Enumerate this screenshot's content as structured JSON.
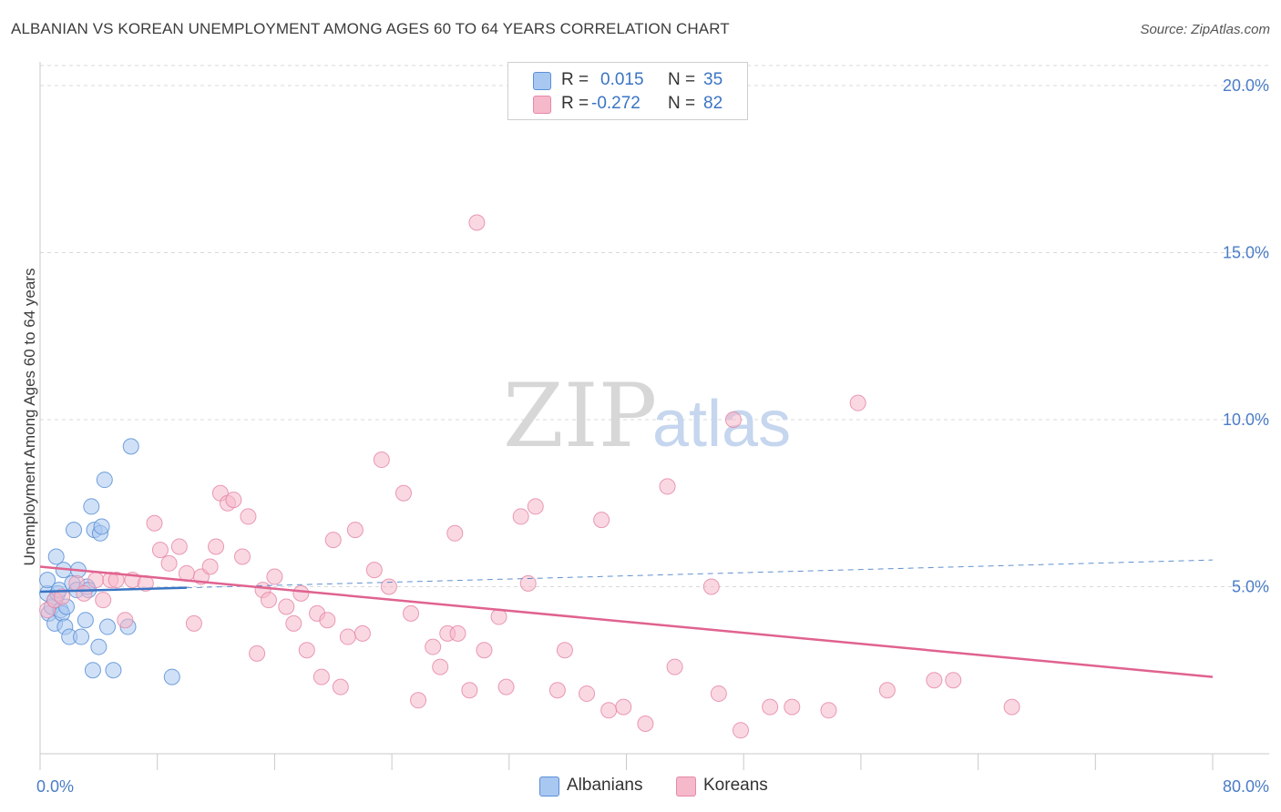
{
  "title": "ALBANIAN VS KOREAN UNEMPLOYMENT AMONG AGES 60 TO 64 YEARS CORRELATION CHART",
  "source": "Source: ZipAtlas.com",
  "watermark": {
    "zip": "ZIP",
    "atlas": "atlas"
  },
  "legend": {
    "rows": [
      {
        "r_label": "R =",
        "r_value": "0.015",
        "n_label": "N =",
        "n_value": "35"
      },
      {
        "r_label": "R =",
        "r_value": "-0.272",
        "n_label": "N =",
        "n_value": "82"
      }
    ]
  },
  "bottom_legend": [
    "Albanians",
    "Koreans"
  ],
  "colors": {
    "albanian_fill": "#a9c8f1",
    "albanian_stroke": "#5b8fd6",
    "albanian_line": "#3a74c4",
    "korean_fill": "#f6b8cb",
    "korean_stroke": "#e58aa7",
    "korean_line": "#e0628f",
    "tick_text": "#4a7cc7",
    "grid": "#d9d9d9"
  },
  "chart_data": {
    "type": "scatter",
    "title": "ALBANIAN VS KOREAN UNEMPLOYMENT AMONG AGES 60 TO 64 YEARS CORRELATION CHART",
    "xlabel": "",
    "ylabel": "Unemployment Among Ages 60 to 64 years",
    "xlim": [
      0,
      80
    ],
    "ylim": [
      0,
      20.6
    ],
    "x_tick_labels": [
      "0.0%",
      "80.0%"
    ],
    "y_ticks": [
      5,
      10,
      15,
      20
    ],
    "y_tick_labels": [
      "5.0%",
      "10.0%",
      "15.0%",
      "20.0%"
    ],
    "series": [
      {
        "name": "Albanians",
        "r": 0.015,
        "n": 35,
        "points": [
          [
            0.5,
            4.8
          ],
          [
            0.5,
            5.2
          ],
          [
            0.6,
            4.2
          ],
          [
            0.8,
            4.4
          ],
          [
            1.0,
            4.6
          ],
          [
            1.0,
            3.9
          ],
          [
            1.1,
            5.9
          ],
          [
            1.2,
            4.8
          ],
          [
            1.3,
            4.9
          ],
          [
            1.4,
            4.3
          ],
          [
            1.5,
            4.2
          ],
          [
            1.6,
            5.5
          ],
          [
            1.7,
            3.8
          ],
          [
            1.8,
            4.4
          ],
          [
            2.0,
            3.5
          ],
          [
            2.2,
            5.1
          ],
          [
            2.3,
            6.7
          ],
          [
            2.5,
            4.9
          ],
          [
            2.6,
            5.5
          ],
          [
            2.8,
            3.5
          ],
          [
            3.1,
            4.0
          ],
          [
            3.2,
            5.0
          ],
          [
            3.3,
            4.9
          ],
          [
            3.5,
            7.4
          ],
          [
            3.6,
            2.5
          ],
          [
            3.7,
            6.7
          ],
          [
            4.0,
            3.2
          ],
          [
            4.1,
            6.6
          ],
          [
            4.2,
            6.8
          ],
          [
            4.4,
            8.2
          ],
          [
            4.6,
            3.8
          ],
          [
            5.0,
            2.5
          ],
          [
            6.0,
            3.8
          ],
          [
            6.2,
            9.2
          ],
          [
            9.0,
            2.3
          ]
        ],
        "trend": {
          "x0": 0,
          "y0": 4.85,
          "x1": 80,
          "y1": 5.8,
          "solid_until_x": 10
        }
      },
      {
        "name": "Koreans",
        "r": -0.272,
        "n": 82,
        "points": [
          [
            0.5,
            4.3
          ],
          [
            1.0,
            4.6
          ],
          [
            1.5,
            4.7
          ],
          [
            2.5,
            5.1
          ],
          [
            3.0,
            4.8
          ],
          [
            3.8,
            5.2
          ],
          [
            4.3,
            4.6
          ],
          [
            4.8,
            5.2
          ],
          [
            5.2,
            5.2
          ],
          [
            5.8,
            4.0
          ],
          [
            6.3,
            5.2
          ],
          [
            7.2,
            5.1
          ],
          [
            7.8,
            6.9
          ],
          [
            8.2,
            6.1
          ],
          [
            8.8,
            5.7
          ],
          [
            9.5,
            6.2
          ],
          [
            10.0,
            5.4
          ],
          [
            10.5,
            3.9
          ],
          [
            11.0,
            5.3
          ],
          [
            11.6,
            5.6
          ],
          [
            12.0,
            6.2
          ],
          [
            12.3,
            7.8
          ],
          [
            12.8,
            7.5
          ],
          [
            13.2,
            7.6
          ],
          [
            13.8,
            5.9
          ],
          [
            14.2,
            7.1
          ],
          [
            14.8,
            3.0
          ],
          [
            15.2,
            4.9
          ],
          [
            15.6,
            4.6
          ],
          [
            16.0,
            5.3
          ],
          [
            16.8,
            4.4
          ],
          [
            17.3,
            3.9
          ],
          [
            17.8,
            4.8
          ],
          [
            18.2,
            3.1
          ],
          [
            18.9,
            4.2
          ],
          [
            19.2,
            2.3
          ],
          [
            19.6,
            4.0
          ],
          [
            20.0,
            6.4
          ],
          [
            20.5,
            2.0
          ],
          [
            21.0,
            3.5
          ],
          [
            21.5,
            6.7
          ],
          [
            22.0,
            3.6
          ],
          [
            22.8,
            5.5
          ],
          [
            23.3,
            8.8
          ],
          [
            24.8,
            7.8
          ],
          [
            25.3,
            4.2
          ],
          [
            25.8,
            1.6
          ],
          [
            26.8,
            3.2
          ],
          [
            27.3,
            2.6
          ],
          [
            27.8,
            3.6
          ],
          [
            28.3,
            6.6
          ],
          [
            29.3,
            1.9
          ],
          [
            29.8,
            15.9
          ],
          [
            30.3,
            3.1
          ],
          [
            31.3,
            4.1
          ],
          [
            31.8,
            2.0
          ],
          [
            32.8,
            7.1
          ],
          [
            33.3,
            5.1
          ],
          [
            33.8,
            7.4
          ],
          [
            35.3,
            1.9
          ],
          [
            35.8,
            3.1
          ],
          [
            37.3,
            1.8
          ],
          [
            38.3,
            7.0
          ],
          [
            38.8,
            1.3
          ],
          [
            39.8,
            1.4
          ],
          [
            41.3,
            0.9
          ],
          [
            42.8,
            8.0
          ],
          [
            43.3,
            2.6
          ],
          [
            45.8,
            5.0
          ],
          [
            46.3,
            1.8
          ],
          [
            47.3,
            10.0
          ],
          [
            47.8,
            0.7
          ],
          [
            49.8,
            1.4
          ],
          [
            51.3,
            1.4
          ],
          [
            53.8,
            1.3
          ],
          [
            55.8,
            10.5
          ],
          [
            57.8,
            1.9
          ],
          [
            62.3,
            2.2
          ],
          [
            66.3,
            1.4
          ],
          [
            61.0,
            2.2
          ],
          [
            28.5,
            3.6
          ],
          [
            23.8,
            5.0
          ]
        ],
        "trend": {
          "x0": 0,
          "y0": 5.6,
          "x1": 80,
          "y1": 2.3
        }
      }
    ]
  }
}
